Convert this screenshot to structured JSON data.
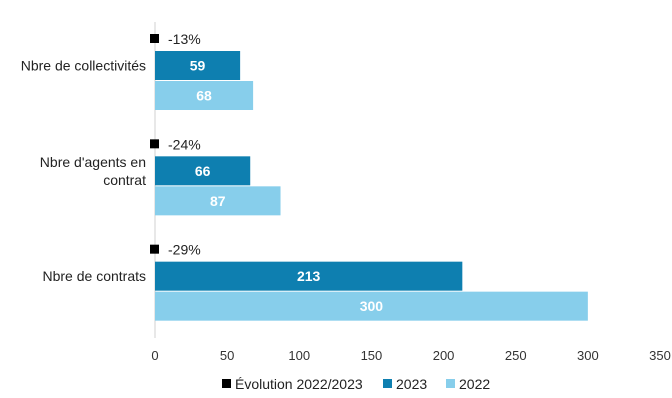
{
  "chart_data": {
    "type": "bar",
    "orientation": "horizontal",
    "categories": [
      "Nbre de collectivités",
      "Nbre d'agents en contrat",
      "Nbre de contrats"
    ],
    "category_lines": [
      [
        "Nbre de collectivités"
      ],
      [
        "Nbre d'agents en",
        "contrat"
      ],
      [
        "Nbre de contrats"
      ]
    ],
    "series": [
      {
        "name": "2023",
        "values": [
          59,
          66,
          213
        ],
        "color": "#0e7fb0"
      },
      {
        "name": "2022",
        "values": [
          68,
          87,
          300
        ],
        "color": "#87ceeb"
      }
    ],
    "evolution": {
      "name": "Évolution 2022/2023",
      "values": [
        "-13%",
        "-24%",
        "-29%"
      ],
      "color": "#000000"
    },
    "xlim": [
      0,
      350
    ],
    "xticks": [
      0,
      50,
      100,
      150,
      200,
      250,
      300,
      350
    ],
    "grid": false,
    "legend_position": "bottom",
    "title": "",
    "xlabel": "",
    "ylabel": ""
  }
}
